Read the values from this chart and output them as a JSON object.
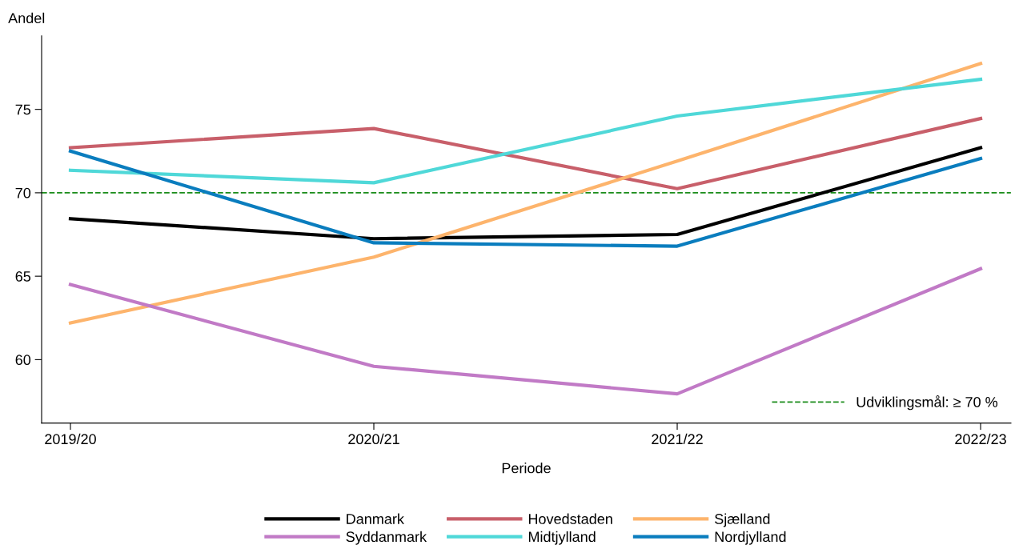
{
  "chart_data": {
    "type": "line",
    "xlabel": "Periode",
    "ylabel": "Andel",
    "categories": [
      "2019/20",
      "2020/21",
      "2021/22",
      "2022/23"
    ],
    "series": [
      {
        "name": "Danmark",
        "color": "#000000",
        "values": [
          68.45,
          67.25,
          67.5,
          72.7
        ]
      },
      {
        "name": "Hovedstaden",
        "color": "#c85f6a",
        "values": [
          72.7,
          73.85,
          70.25,
          74.45
        ]
      },
      {
        "name": "Sjælland",
        "color": "#fdb46c",
        "values": [
          62.2,
          66.15,
          71.9,
          77.75
        ]
      },
      {
        "name": "Syddanmark",
        "color": "#c17ac6",
        "values": [
          64.5,
          59.6,
          57.95,
          65.45
        ]
      },
      {
        "name": "Midtjylland",
        "color": "#4fd8d8",
        "values": [
          71.35,
          70.6,
          74.6,
          76.8
        ]
      },
      {
        "name": "Nordjylland",
        "color": "#0a7dbe",
        "values": [
          72.5,
          67.0,
          66.8,
          72.05
        ]
      }
    ],
    "ylim": [
      56.2,
      79.4
    ],
    "yticks": [
      60,
      65,
      70,
      75
    ],
    "ref_lines": [
      {
        "axis": "y",
        "value": 70,
        "label": "Udviklingsmål: ≥ 70 %",
        "color": "#1a8c1a",
        "line_style": "dashed"
      }
    ],
    "legend": "bottom",
    "grid": false,
    "marker": "none",
    "line_style": "solid"
  }
}
